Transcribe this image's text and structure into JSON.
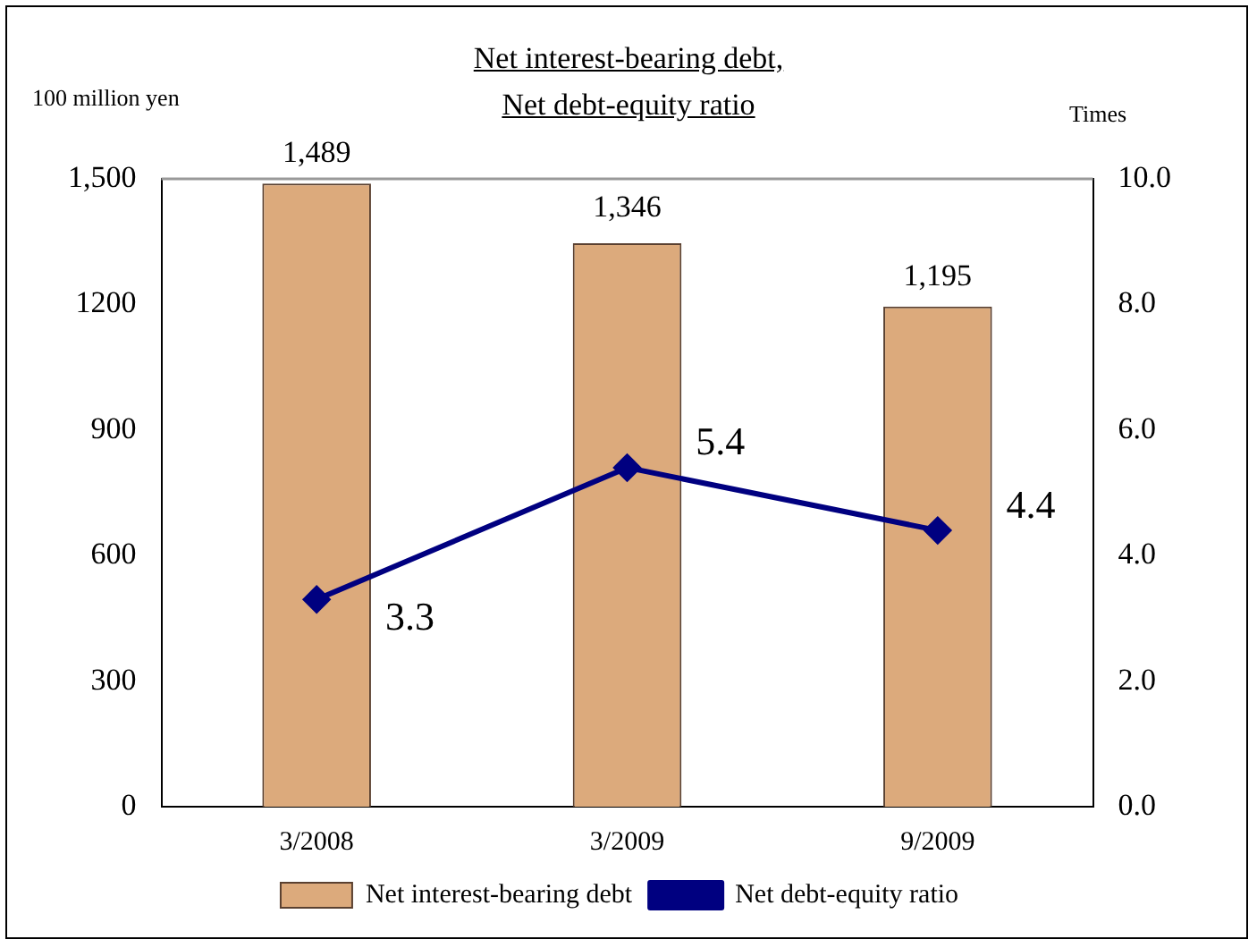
{
  "chart_data": {
    "type": "bar",
    "title": "Net interest-bearing debt,\nNet debt-equity ratio",
    "ylabel": "100 million yen",
    "y2label": "Times",
    "categories": [
      "3/2008",
      "3/2009",
      "9/2009"
    ],
    "series": [
      {
        "name": "Net interest-bearing debt",
        "color": "#dcaa7c",
        "values": [
          1489,
          1346,
          1195
        ],
        "value_labels": [
          "1,489",
          "1,346",
          "1,195"
        ]
      },
      {
        "name": "Net debt-equity ratio",
        "type": "line",
        "axis": "y2",
        "color": "#000080",
        "values": [
          3.3,
          5.4,
          4.4
        ],
        "value_labels": [
          "3.3",
          "5.4",
          "4.4"
        ]
      }
    ],
    "ylim": [
      0,
      1500
    ],
    "yticks": [
      0,
      300,
      600,
      900,
      1200,
      {
        "value": 1500,
        "label": "1,500"
      }
    ],
    "y2lim": [
      0,
      10
    ],
    "y2ticks": [
      {
        "value": 0,
        "label": "0.0"
      },
      {
        "value": 2,
        "label": "2.0"
      },
      {
        "value": 4,
        "label": "4.0"
      },
      {
        "value": 6,
        "label": "6.0"
      },
      {
        "value": 8,
        "label": "8.0"
      },
      {
        "value": 10,
        "label": "10.0"
      }
    ],
    "grid": false,
    "legend": "bottom",
    "marker": "diamond",
    "line_style": "solid"
  }
}
